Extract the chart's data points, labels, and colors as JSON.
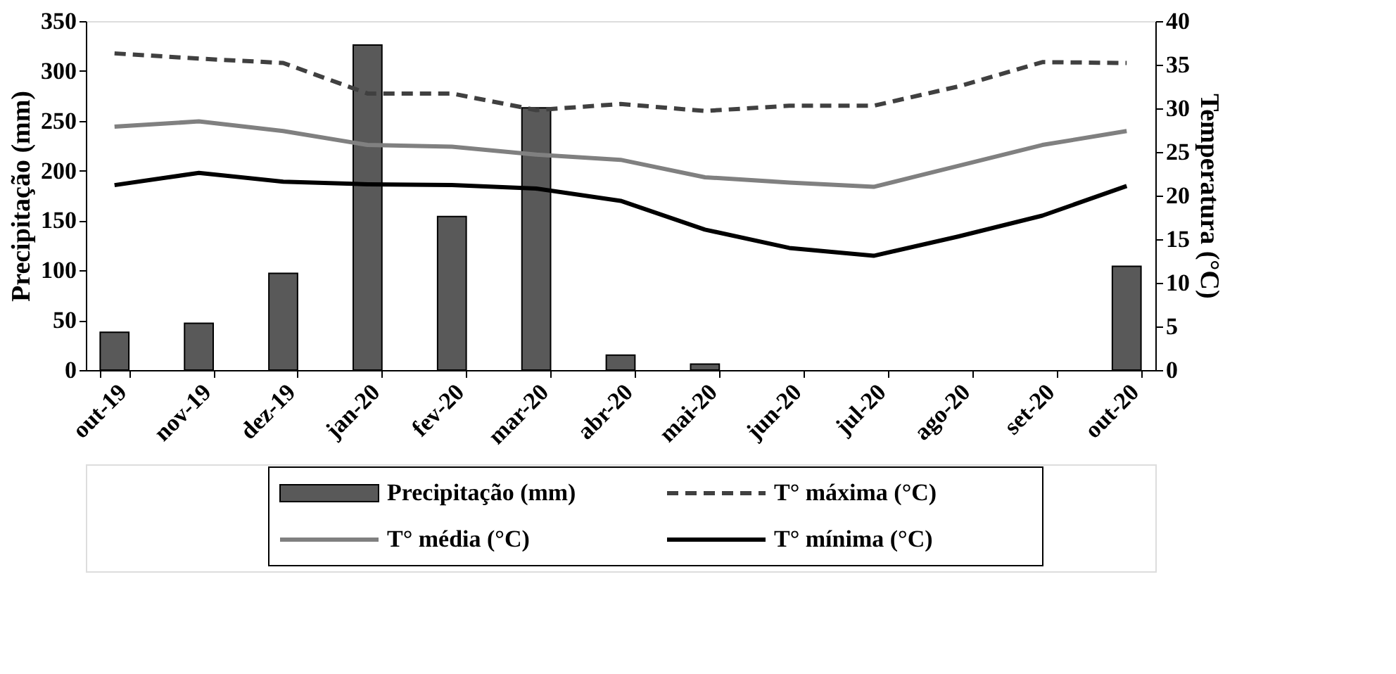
{
  "chart_data": {
    "type": "bar",
    "categories": [
      "out-19",
      "nov-19",
      "dez-19",
      "jan-20",
      "fev-20",
      "mar-20",
      "abr-20",
      "mai-20",
      "jun-20",
      "jul-20",
      "ago-20",
      "set-20",
      "out-20"
    ],
    "ylabel": "Precipitação (mm)",
    "y2label": "Temperatura (°C)",
    "ylim": [
      0,
      350
    ],
    "yticks": [
      0,
      50,
      100,
      150,
      200,
      250,
      300,
      350
    ],
    "y2lim": [
      0,
      40
    ],
    "y2ticks": [
      0,
      5,
      10,
      15,
      20,
      25,
      30,
      35,
      40
    ],
    "grid": false,
    "legend": "bottom",
    "series": [
      {
        "name": "Precipitação (mm)",
        "color": "#595959",
        "values": [
          38,
          47,
          97,
          326,
          154,
          263,
          15,
          6,
          0,
          0,
          0,
          0,
          104
        ]
      },
      {
        "name": "T° máxima (°C)",
        "type": "line",
        "axis": "y2",
        "line_style": "dashed",
        "color": "#404040",
        "values": [
          36.3,
          35.7,
          35.2,
          31.7,
          31.7,
          29.8,
          30.5,
          29.7,
          30.3,
          30.3,
          32.5,
          35.3,
          35.2
        ]
      },
      {
        "name": "T° média (°C)",
        "type": "line",
        "axis": "y2",
        "line_style": "solid",
        "color": "#808080",
        "values": [
          27.9,
          28.5,
          27.4,
          25.8,
          25.6,
          24.7,
          24.1,
          22.1,
          21.5,
          21.0,
          23.4,
          25.8,
          27.4
        ]
      },
      {
        "name": "T° mínima (°C)",
        "type": "line",
        "axis": "y2",
        "line_style": "solid",
        "color": "#000000",
        "values": [
          21.2,
          22.6,
          21.6,
          21.3,
          21.2,
          20.8,
          19.4,
          16.1,
          14.0,
          13.1,
          15.3,
          17.7,
          21.1
        ]
      }
    ]
  }
}
